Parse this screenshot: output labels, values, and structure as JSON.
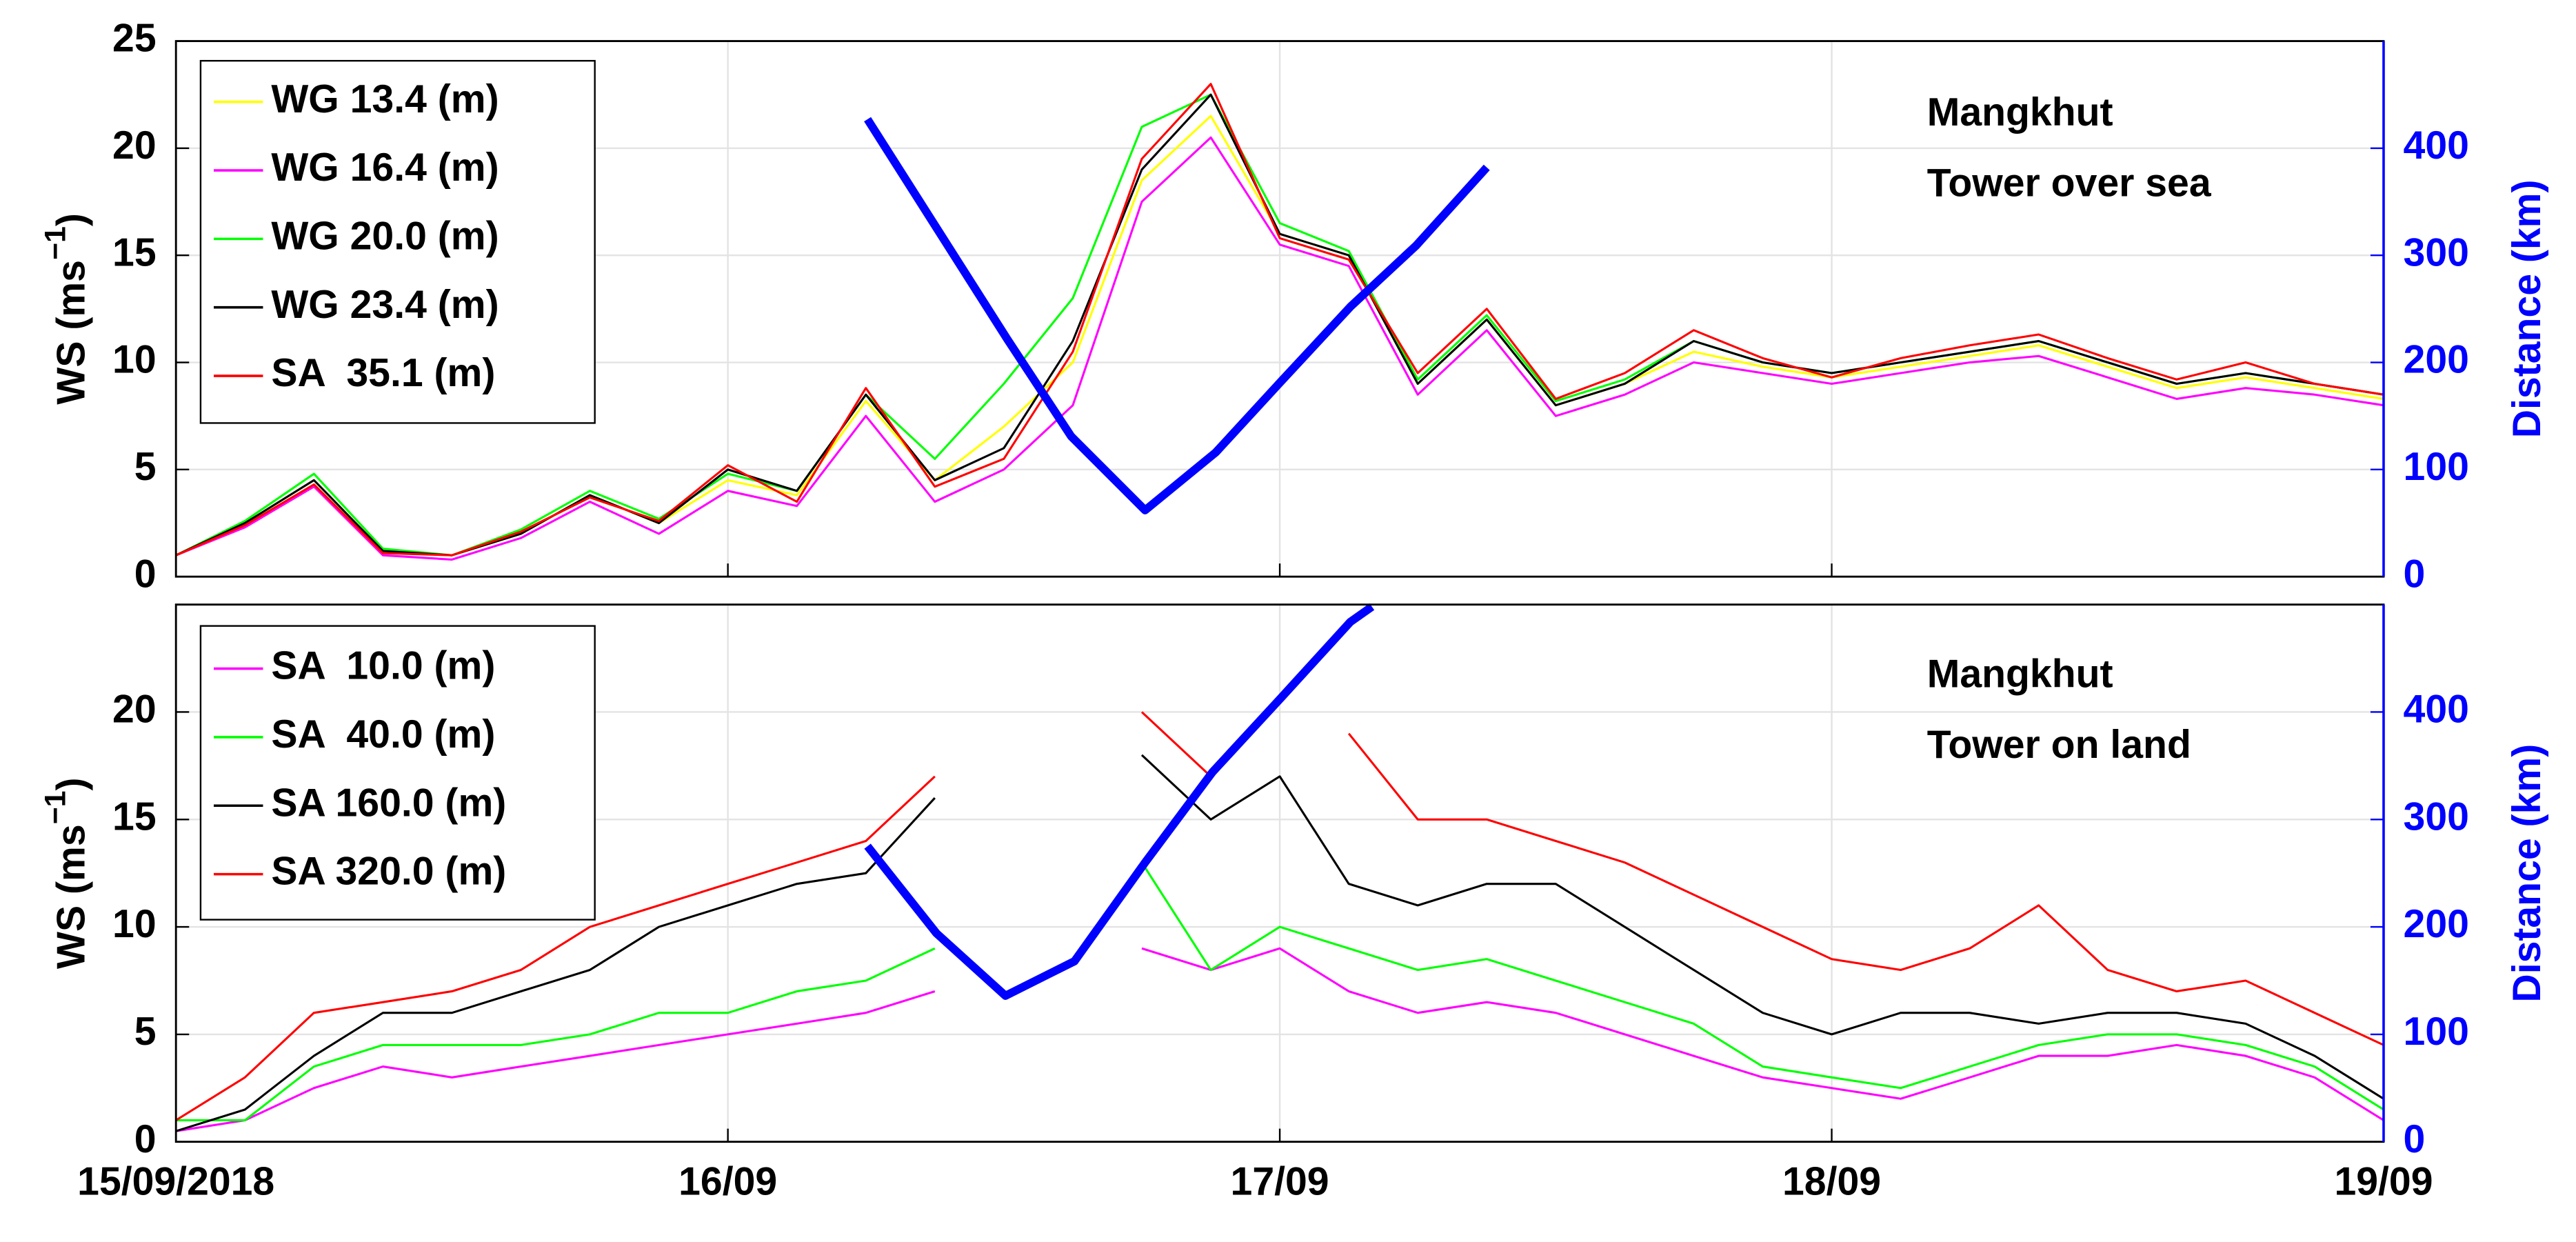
{
  "chart_data": [
    {
      "type": "line",
      "annotations": [
        "Mangkhut",
        "Tower over sea"
      ],
      "ylabel": [
        "WS (ms",
        "−1",
        ")"
      ],
      "y2label": "Distance (km)",
      "xlim": [
        0,
        4
      ],
      "xticks": [
        0,
        1,
        2,
        3,
        4
      ],
      "ylim": [
        0,
        25
      ],
      "yticks": [
        0,
        5,
        10,
        15,
        20,
        25
      ],
      "y2lim": [
        0,
        500
      ],
      "y2ticks": [
        0,
        100,
        200,
        300,
        400
      ],
      "grid": true,
      "legend": "upper left",
      "x": [
        0,
        0.125,
        0.25,
        0.375,
        0.5,
        0.625,
        0.75,
        0.875,
        1,
        1.125,
        1.25,
        1.375,
        1.5,
        1.625,
        1.75,
        1.875,
        2,
        2.125,
        2.25,
        2.375,
        2.5,
        2.625,
        2.75,
        2.875,
        3,
        3.125,
        3.25,
        3.375,
        3.5,
        3.625,
        3.75,
        3.875,
        4
      ],
      "series": [
        {
          "name": "WG 13.4 (m)",
          "color": "#ffff00",
          "values": [
            1,
            2.5,
            4.5,
            1.2,
            1,
            2,
            3.8,
            2.5,
            4.5,
            3.8,
            8.2,
            4.5,
            7,
            10,
            18.5,
            21.5,
            16,
            15,
            9,
            12,
            8,
            9,
            10.5,
            9.8,
            9.3,
            9.8,
            10.3,
            10.8,
            9.8,
            8.8,
            9.3,
            8.8,
            8.3
          ]
        },
        {
          "name": "WG 16.4 (m)",
          "color": "#ff00ff",
          "values": [
            1,
            2.3,
            4.2,
            1,
            0.8,
            1.8,
            3.5,
            2,
            4,
            3.3,
            7.5,
            3.5,
            5,
            8,
            17.5,
            20.5,
            15.5,
            14.5,
            8.5,
            11.5,
            7.5,
            8.5,
            10,
            9.5,
            9,
            9.5,
            10,
            10.3,
            9.3,
            8.3,
            8.8,
            8.5,
            8
          ]
        },
        {
          "name": "WG 20.0 (m)",
          "color": "#00ff00",
          "values": [
            1,
            2.6,
            4.8,
            1.3,
            1,
            2.2,
            4,
            2.7,
            4.8,
            4,
            8.5,
            5.5,
            9,
            13,
            21,
            22.5,
            16.5,
            15.2,
            9.2,
            12.2,
            8.2,
            9.2,
            11,
            10,
            9.5,
            10,
            10.5,
            11,
            10,
            9,
            9.5,
            9,
            8.5
          ]
        },
        {
          "name": "WG 23.4 (m)",
          "color": "#000000",
          "values": [
            1,
            2.5,
            4.5,
            1.2,
            1,
            2,
            3.8,
            2.5,
            5,
            4,
            8.5,
            4.5,
            6,
            11,
            19,
            22.5,
            16,
            15,
            9,
            12,
            8,
            9,
            11,
            10,
            9.5,
            10,
            10.5,
            11,
            10,
            9,
            9.5,
            9,
            8.5
          ]
        },
        {
          "name": "SA  35.1 (m)",
          "color": "#ff0000",
          "values": [
            1,
            2.4,
            4.3,
            1.1,
            1,
            2.1,
            3.7,
            2.6,
            5.2,
            3.5,
            8.8,
            4.2,
            5.5,
            10.5,
            19.5,
            23,
            15.8,
            14.8,
            9.5,
            12.5,
            8.3,
            9.5,
            11.5,
            10.2,
            9.3,
            10.2,
            10.8,
            11.3,
            10.2,
            9.2,
            10,
            9,
            8.5
          ]
        },
        {
          "axis": "y2",
          "color": "#0000ff",
          "x": [
            1.253,
            1.506,
            1.622,
            1.756,
            1.884,
            2.0,
            2.128,
            2.247,
            2.375
          ],
          "values": [
            427,
            222,
            131,
            62,
            116,
            181,
            252,
            309,
            382
          ]
        }
      ]
    },
    {
      "type": "line",
      "annotations": [
        "Mangkhut",
        "Tower on land"
      ],
      "ylabel": [
        "WS (ms",
        "−1",
        ")"
      ],
      "y2label": "Distance (km)",
      "xlim": [
        0,
        4
      ],
      "xticks": [
        {
          "value": 0,
          "label": "15/09/2018"
        },
        {
          "value": 1,
          "label": "16/09"
        },
        {
          "value": 2,
          "label": "17/09"
        },
        {
          "value": 3,
          "label": "18/09"
        },
        {
          "value": 4,
          "label": "19/09"
        }
      ],
      "ylim": [
        0,
        25
      ],
      "yticks": [
        0,
        5,
        10,
        15,
        20
      ],
      "y2lim": [
        0,
        500
      ],
      "y2ticks": [
        0,
        100,
        200,
        300,
        400
      ],
      "grid": true,
      "legend": "upper left",
      "x": [
        0,
        0.125,
        0.25,
        0.375,
        0.5,
        0.625,
        0.75,
        0.875,
        1,
        1.125,
        1.25,
        1.375,
        1.5,
        1.625,
        1.75,
        1.875,
        2,
        2.125,
        2.25,
        2.375,
        2.5,
        2.625,
        2.75,
        2.875,
        3,
        3.125,
        3.25,
        3.375,
        3.5,
        3.625,
        3.75,
        3.875,
        4
      ],
      "series": [
        {
          "name": "SA  10.0 (m)",
          "color": "#ff00ff",
          "values": [
            0.5,
            1,
            2.5,
            3.5,
            3,
            3.5,
            4,
            4.5,
            5,
            5.5,
            6,
            7,
            null,
            null,
            9,
            8,
            9,
            7,
            6,
            6.5,
            6,
            5,
            4,
            3,
            2.5,
            2,
            3,
            4,
            4,
            4.5,
            4,
            3,
            1
          ]
        },
        {
          "name": "SA  40.0 (m)",
          "color": "#00ff00",
          "values": [
            1,
            1,
            3.5,
            4.5,
            4.5,
            4.5,
            5,
            6,
            6,
            7,
            7.5,
            9,
            null,
            null,
            13,
            8,
            10,
            9,
            8,
            8.5,
            7.5,
            6.5,
            5.5,
            3.5,
            3,
            2.5,
            3.5,
            4.5,
            5,
            5,
            4.5,
            3.5,
            1.5
          ]
        },
        {
          "name": "SA 160.0 (m)",
          "color": "#000000",
          "values": [
            0.5,
            1.5,
            4,
            6,
            6,
            7,
            8,
            10,
            11,
            12,
            12.5,
            16,
            null,
            null,
            18,
            15,
            17,
            12,
            11,
            12,
            12,
            10,
            8,
            6,
            5,
            6,
            6,
            5.5,
            6,
            6,
            5.5,
            4,
            2
          ]
        },
        {
          "name": "SA 320.0 (m)",
          "color": "#ff0000",
          "values": [
            1,
            3,
            6,
            6.5,
            7,
            8,
            10,
            11,
            12,
            13,
            14,
            17,
            null,
            null,
            20,
            17,
            null,
            19,
            15,
            15,
            14,
            13,
            11.5,
            10,
            8.5,
            8,
            9,
            11,
            8,
            7,
            7.5,
            6,
            4.5
          ]
        },
        {
          "axis": "y2",
          "color": "#0000ff",
          "x": [
            1.253,
            1.378,
            1.503,
            1.628,
            1.756,
            1.878,
            2.0,
            2.128,
            2.167
          ],
          "values": [
            275,
            194,
            136,
            168,
            260,
            344,
            412,
            484,
            498
          ]
        }
      ]
    }
  ]
}
